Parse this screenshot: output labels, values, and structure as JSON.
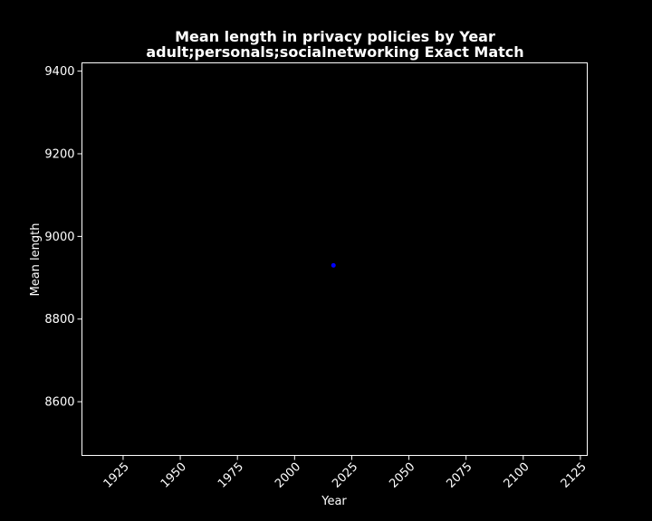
{
  "chart_data": {
    "type": "scatter",
    "title": "Mean length in privacy policies by Year",
    "subtitle": "adult;personals;socialnetworking Exact Match",
    "xlabel": "Year",
    "ylabel": "Mean length",
    "xlim": [
      1907,
      2128
    ],
    "ylim": [
      8470,
      9420
    ],
    "xticks": [
      1925,
      1950,
      1975,
      2000,
      2025,
      2050,
      2075,
      2100,
      2125
    ],
    "yticks": [
      8600,
      8800,
      9000,
      9200,
      9400
    ],
    "grid": false,
    "series": [
      {
        "x": [
          2017
        ],
        "y": [
          8930
        ],
        "color": "#0000ff"
      }
    ],
    "colors": {
      "background": "#000000",
      "axes": "#ffffff",
      "text": "#ffffff",
      "point": "#0000ff"
    }
  }
}
